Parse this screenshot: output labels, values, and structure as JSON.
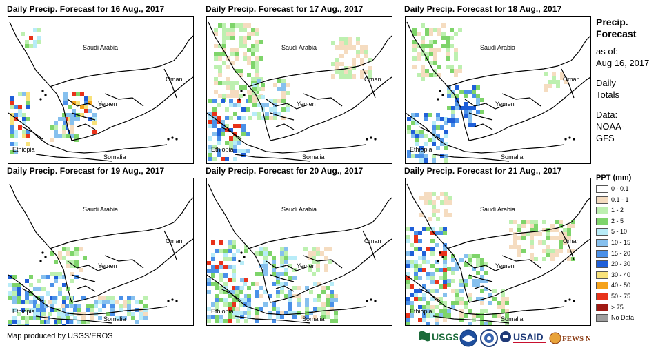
{
  "panels": [
    {
      "title": "Daily Precip. Forecast for 16 Aug., 2017"
    },
    {
      "title": "Daily Precip. Forecast for 17 Aug., 2017"
    },
    {
      "title": "Daily Precip. Forecast for 18 Aug., 2017"
    },
    {
      "title": "Daily Precip. Forecast for 19 Aug., 2017"
    },
    {
      "title": "Daily Precip. Forecast for 20 Aug., 2017"
    },
    {
      "title": "Daily Precip. Forecast for 21 Aug., 2017"
    }
  ],
  "map_labels": {
    "saudi": "Saudi Arabia",
    "oman": "Oman",
    "yemen": "Yemen",
    "ethiopia": "Ethiopia",
    "somalia": "Somalia"
  },
  "legend": {
    "title_line1": "Precip.",
    "title_line2": "Forecast",
    "asof_line1": "as of:",
    "asof_line2": "Aug 16, 2017",
    "daily_line1": "Daily",
    "daily_line2": "Totals",
    "data_line1": "Data:",
    "data_line2": "NOAA-",
    "data_line3": "GFS",
    "ppt_title": "PPT (mm)",
    "classes": [
      {
        "label": "0 - 0.1",
        "color": "#ffffff"
      },
      {
        "label": "0.1 - 1",
        "color": "#f5dcc0"
      },
      {
        "label": "1 - 2",
        "color": "#bdf0b0"
      },
      {
        "label": "2 - 5",
        "color": "#7ed46a"
      },
      {
        "label": "5 - 10",
        "color": "#b8ecf8"
      },
      {
        "label": "10 - 15",
        "color": "#86c0ee"
      },
      {
        "label": "15 - 20",
        "color": "#4a90e8"
      },
      {
        "label": "20 - 30",
        "color": "#1f5fd8"
      },
      {
        "label": "30 - 40",
        "color": "#f8e27a"
      },
      {
        "label": "40 - 50",
        "color": "#f5a21a"
      },
      {
        "label": "50 - 75",
        "color": "#e8321a"
      },
      {
        "label": "> 75",
        "color": "#a01a14"
      },
      {
        "label": "No Data",
        "color": "#9e9e9e"
      }
    ]
  },
  "footer": {
    "credit": "Map produced by USGS/EROS",
    "logos": [
      "USGS",
      "NOAA",
      "DHS",
      "USAID",
      "FEWS NET"
    ]
  }
}
